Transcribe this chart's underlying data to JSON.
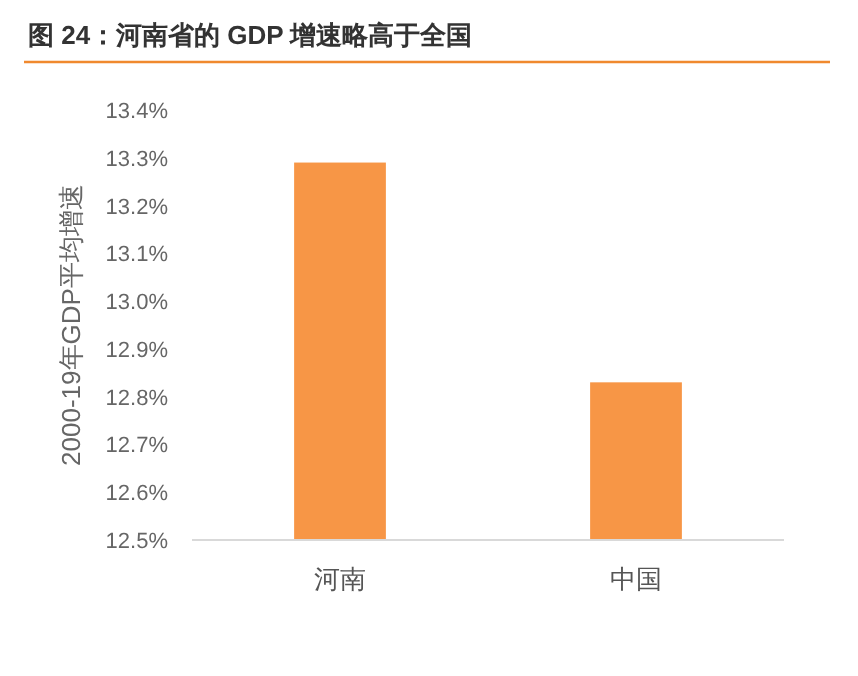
{
  "chart_data": {
    "type": "bar",
    "title": "图 24：河南省的 GDP 增速略高于全国",
    "ylabel": "2000-19年GDP平均增速",
    "categories": [
      "河南",
      "中国"
    ],
    "values": [
      13.29,
      12.83
    ],
    "color": "#f79646",
    "ylim": [
      12.5,
      13.4
    ],
    "yticks": [
      {
        "value": 12.5,
        "label": "12.5%"
      },
      {
        "value": 12.6,
        "label": "12.6%"
      },
      {
        "value": 12.7,
        "label": "12.7%"
      },
      {
        "value": 12.8,
        "label": "12.8%"
      },
      {
        "value": 12.9,
        "label": "12.9%"
      },
      {
        "value": 13.0,
        "label": "13.0%"
      },
      {
        "value": 13.1,
        "label": "13.1%"
      },
      {
        "value": 13.2,
        "label": "13.2%"
      },
      {
        "value": 13.3,
        "label": "13.3%"
      },
      {
        "value": 13.4,
        "label": "13.4%"
      }
    ],
    "grid": false
  }
}
